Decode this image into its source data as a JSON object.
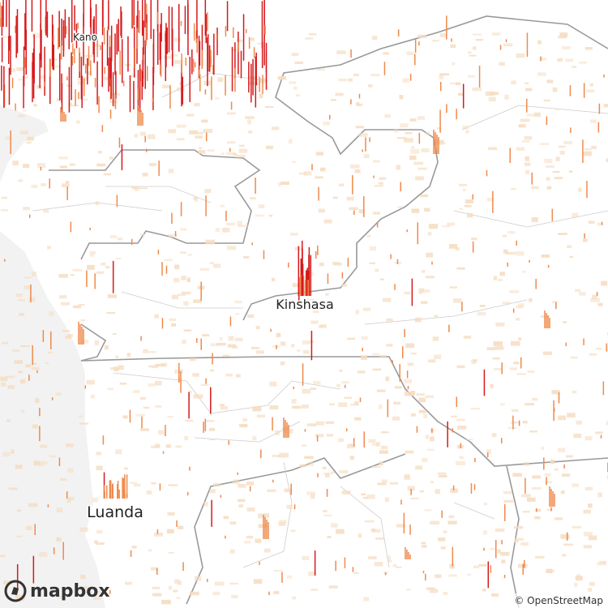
{
  "cities": [
    {
      "name": "Kano"
    },
    {
      "name": "Kinshasa"
    },
    {
      "name": "Luanda"
    }
  ],
  "attribution": {
    "logo": "mapbox",
    "credit": "© OpenStreetMap"
  }
}
